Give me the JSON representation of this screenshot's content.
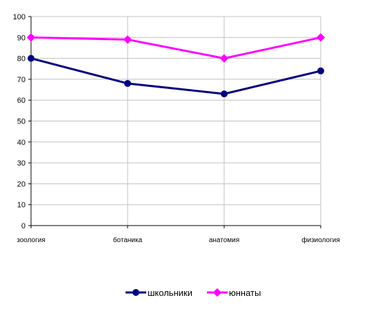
{
  "chart_data": {
    "type": "line",
    "categories": [
      "зоология",
      "ботаника",
      "анатомия",
      "физиология"
    ],
    "series": [
      {
        "name": "школьники",
        "values": [
          80,
          68,
          63,
          74
        ],
        "color": "#000080",
        "marker": "circle"
      },
      {
        "name": "юннаты",
        "values": [
          90,
          89,
          80,
          90
        ],
        "color": "#ff00ff",
        "marker": "diamond"
      }
    ],
    "ylim": [
      0,
      100
    ],
    "yticks": [
      "0",
      "10",
      "20",
      "30",
      "40",
      "50",
      "60",
      "70",
      "80",
      "90",
      "100"
    ],
    "grid": true,
    "legend_position": "bottom",
    "title": "",
    "xlabel": "",
    "ylabel": ""
  }
}
